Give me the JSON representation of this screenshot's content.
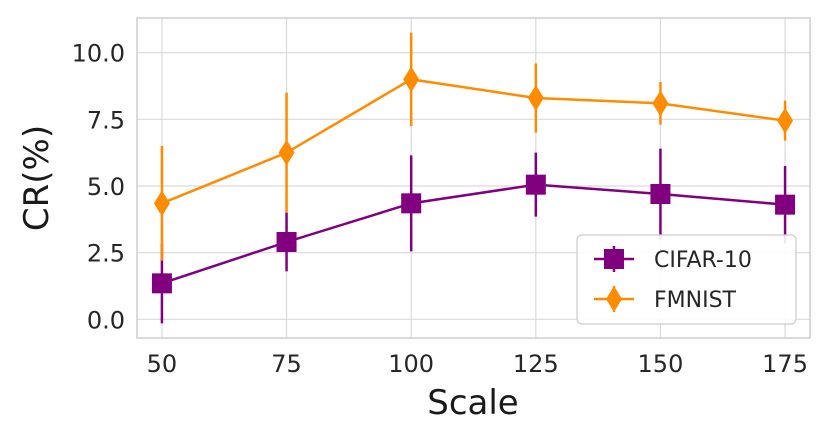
{
  "chart_data": {
    "type": "line",
    "title": "",
    "xlabel": "Scale",
    "ylabel": "CR(%)",
    "x": [
      50,
      75,
      100,
      125,
      150,
      175
    ],
    "xticks": [
      "50",
      "75",
      "100",
      "125",
      "150",
      "175"
    ],
    "yticks": [
      0.0,
      2.5,
      5.0,
      7.5,
      10.0
    ],
    "ytick_labels": [
      "0.0",
      "2.5",
      "5.0",
      "7.5",
      "10.0"
    ],
    "xlim": [
      45,
      180
    ],
    "ylim": [
      -0.7,
      11.3
    ],
    "grid": true,
    "legend_position": "lower-right",
    "series": [
      {
        "name": "CIFAR-10",
        "color": "#800080",
        "marker": "square",
        "values": [
          1.35,
          2.9,
          4.35,
          5.05,
          4.7,
          4.3
        ],
        "error": [
          1.5,
          1.1,
          1.8,
          1.2,
          1.7,
          1.45
        ]
      },
      {
        "name": "FMNIST",
        "color": "#ff8c00",
        "marker": "diamond",
        "values": [
          4.35,
          6.25,
          9.0,
          8.3,
          8.1,
          7.45
        ],
        "error": [
          2.15,
          2.25,
          1.75,
          1.3,
          0.8,
          0.75
        ]
      }
    ]
  }
}
